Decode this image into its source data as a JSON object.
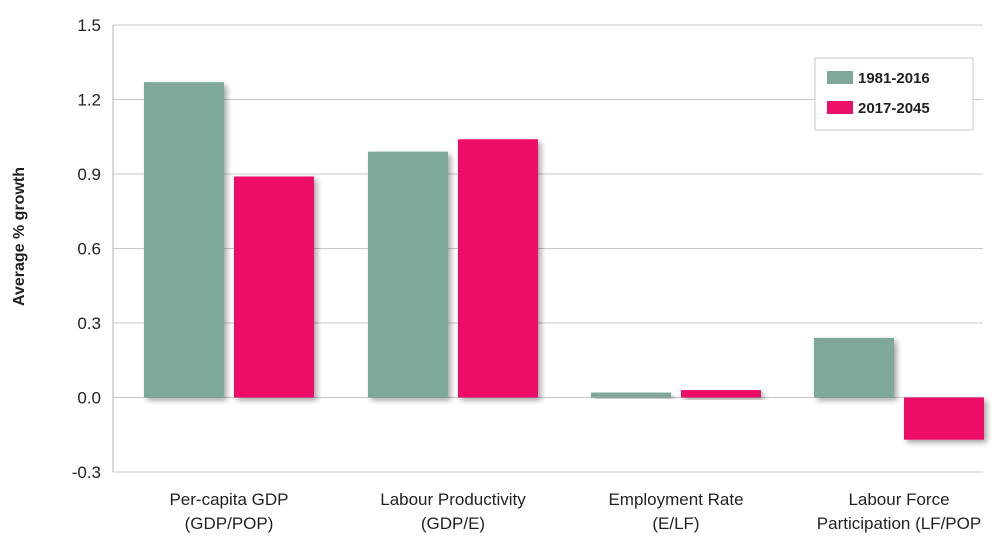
{
  "chart_data": {
    "type": "bar",
    "ylabel": "Average % growth",
    "ylim": [
      -0.3,
      1.5
    ],
    "yticks": [
      "1.5",
      "1.2",
      "0.9",
      "0.6",
      "0.3",
      "0.0",
      "-0.3"
    ],
    "ytick_values": [
      1.5,
      1.2,
      0.9,
      0.6,
      0.3,
      0.0,
      -0.3
    ],
    "grid": true,
    "legend_position": "top-right",
    "categories": [
      [
        "Per-capita GDP",
        "(GDP/POP)"
      ],
      [
        "Labour Productivity",
        "(GDP/E)"
      ],
      [
        "Employment Rate",
        "(E/LF)"
      ],
      [
        "Labour Force",
        "Participation (LF/POP"
      ]
    ],
    "series": [
      {
        "name": "1981-2016",
        "color": "#7ea89a",
        "values": [
          1.27,
          0.99,
          0.02,
          0.24
        ]
      },
      {
        "name": "2017-2045",
        "color": "#ed1068",
        "values": [
          0.89,
          1.04,
          0.03,
          -0.17
        ]
      }
    ]
  }
}
